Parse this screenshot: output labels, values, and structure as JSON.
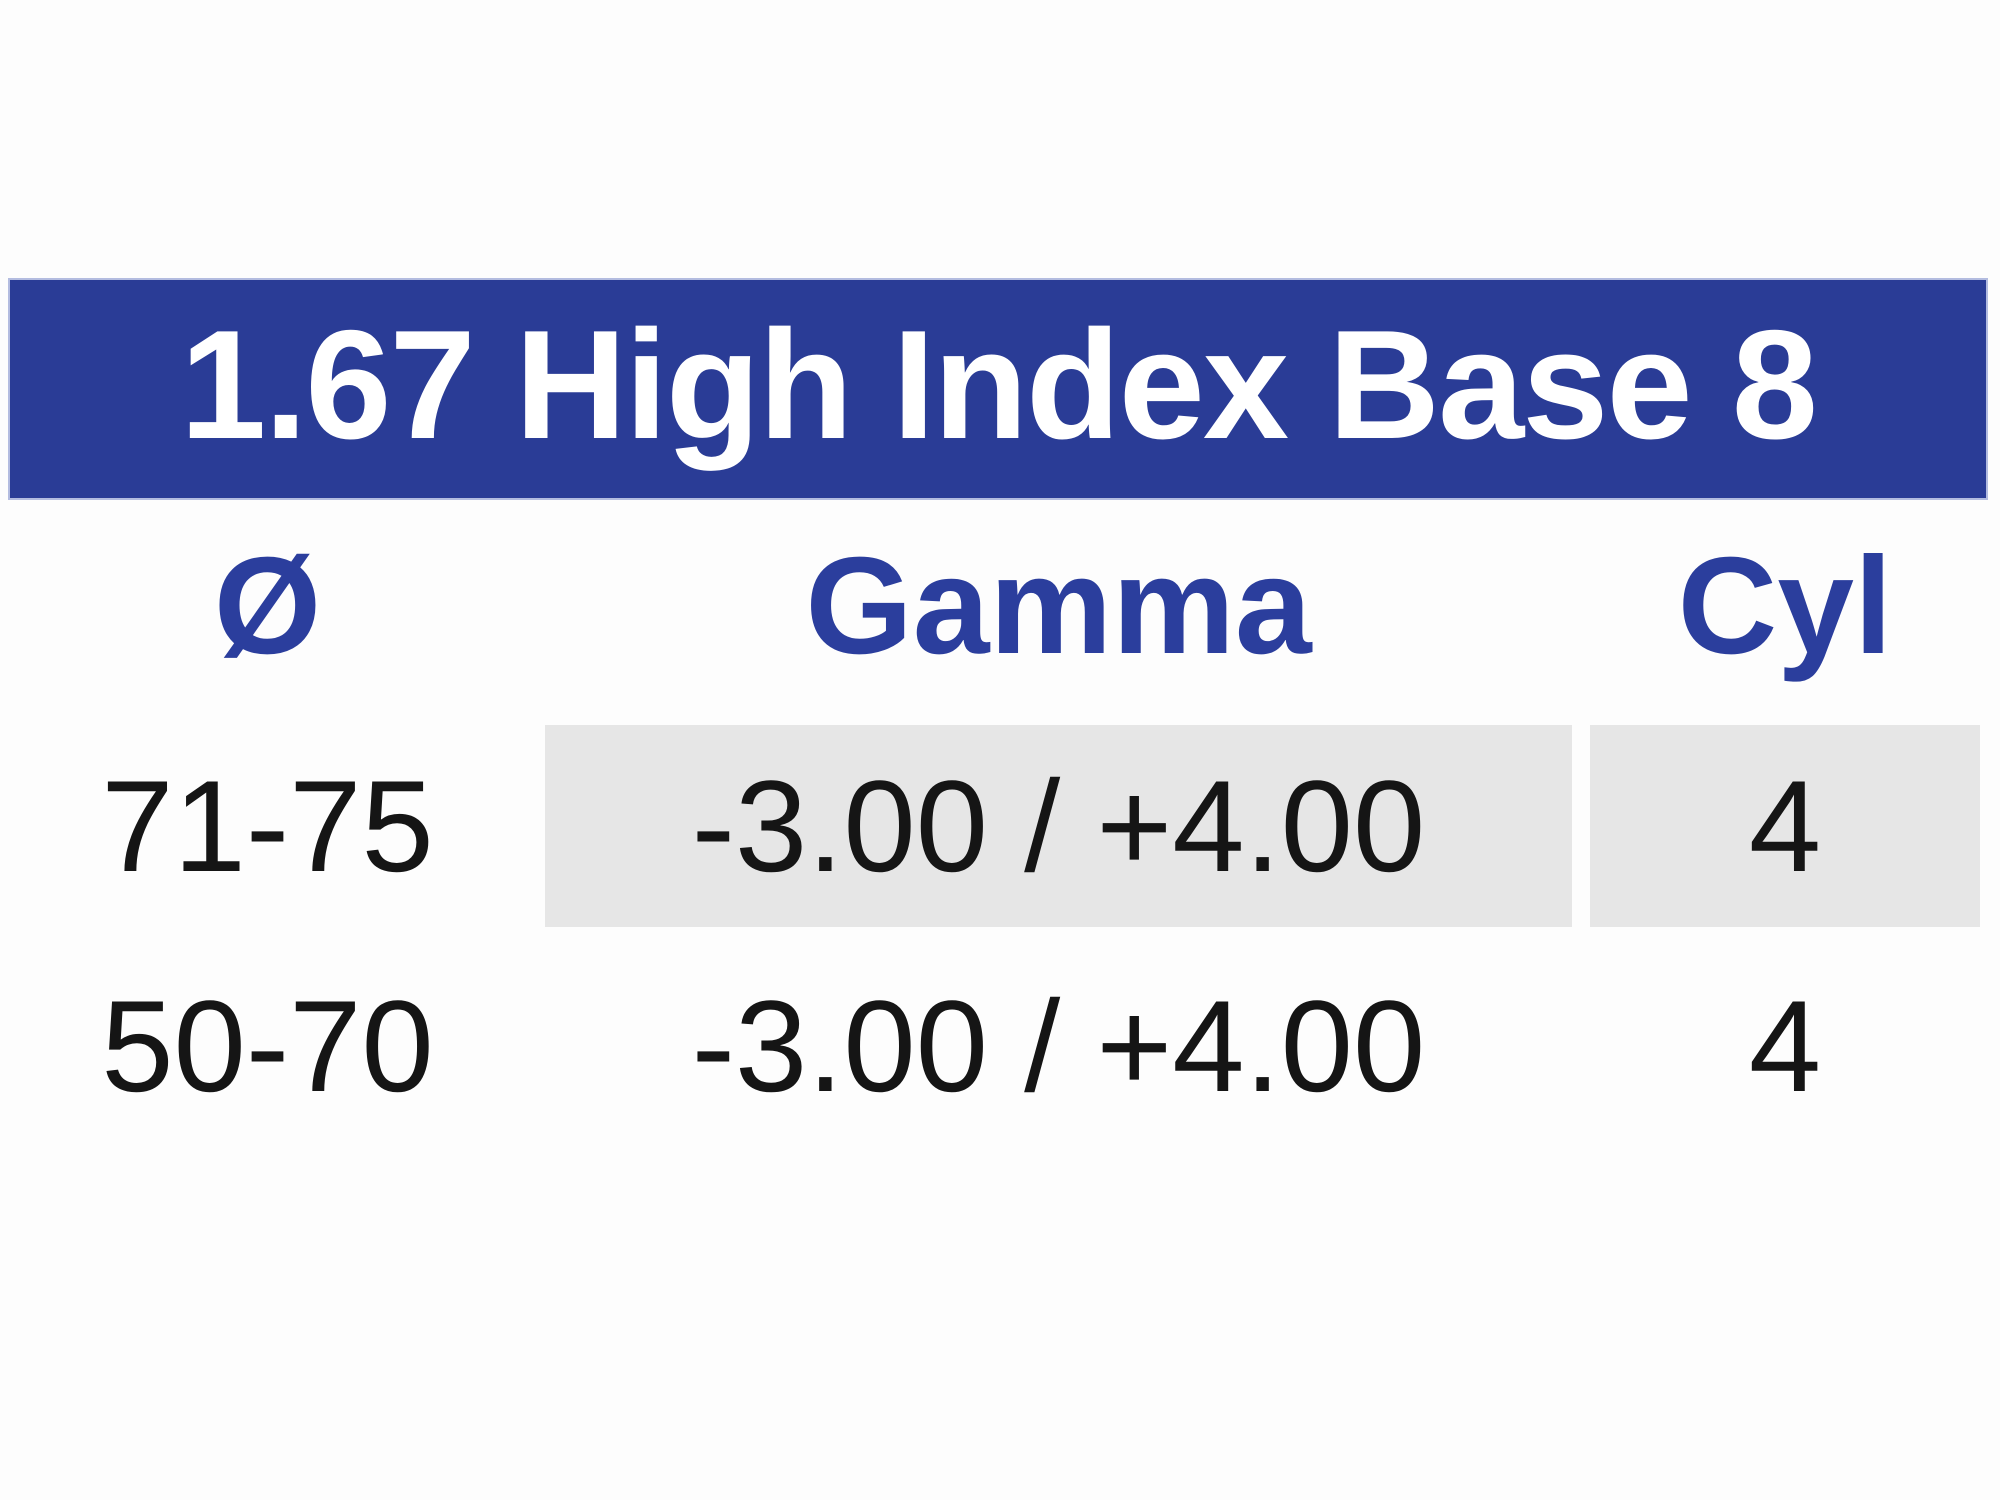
{
  "table": {
    "title": "1.67 High Index Base 8",
    "columns": {
      "diameter": "Ø",
      "gamma": "Gamma",
      "cyl": "Cyl"
    },
    "rows": [
      {
        "diameter": "71-75",
        "gamma": "-3.00 / +4.00",
        "cyl": "4",
        "highlighted": true
      },
      {
        "diameter": "50-70",
        "gamma": "-3.00 / +4.00",
        "cyl": "4",
        "highlighted": false
      }
    ],
    "colors": {
      "banner_bg": "#2A3C96",
      "banner_text": "#FFFFFF",
      "header_text": "#2B3E9D",
      "highlight_bg": "#E6E6E6",
      "body_text": "#151515"
    }
  }
}
